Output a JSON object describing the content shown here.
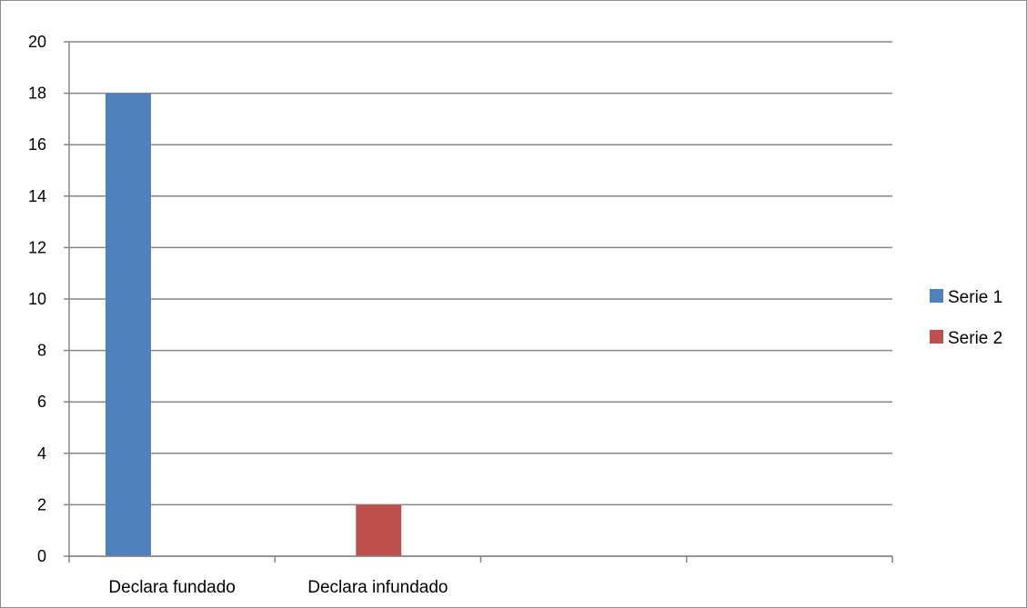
{
  "chart_data": {
    "type": "bar",
    "categories": [
      "Declara fundado",
      "Declara infundado",
      "",
      ""
    ],
    "series": [
      {
        "name": "Serie 1",
        "values": [
          18,
          0,
          0,
          0
        ],
        "color": "#4f81bd"
      },
      {
        "name": "Serie 2",
        "values": [
          0,
          2,
          0,
          0
        ],
        "color": "#c0504d"
      }
    ],
    "y_ticks": [
      "0",
      "2",
      "4",
      "6",
      "8",
      "10",
      "12",
      "14",
      "16",
      "18",
      "20"
    ],
    "ylim": [
      0,
      20
    ],
    "grid": true,
    "legend_position": "right"
  }
}
